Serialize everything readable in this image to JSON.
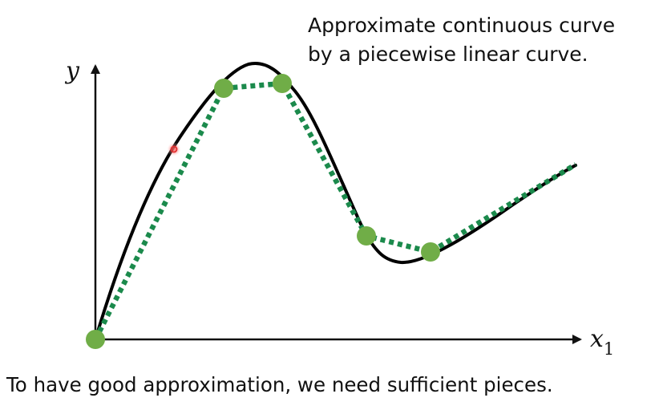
{
  "heading": {
    "line1": "Approximate continuous curve",
    "line2": "by a piecewise linear curve."
  },
  "caption": "To have good approximation, we need sufficient pieces.",
  "axes": {
    "y_label": "y",
    "x_label": "x",
    "x_subscript": "1"
  },
  "colors": {
    "curve": "#000000",
    "piecewise": "#1b8a4c",
    "points": "#70ad47",
    "cursor": "#e03030"
  },
  "icons": {
    "cursor": "red-dot-cursor"
  }
}
